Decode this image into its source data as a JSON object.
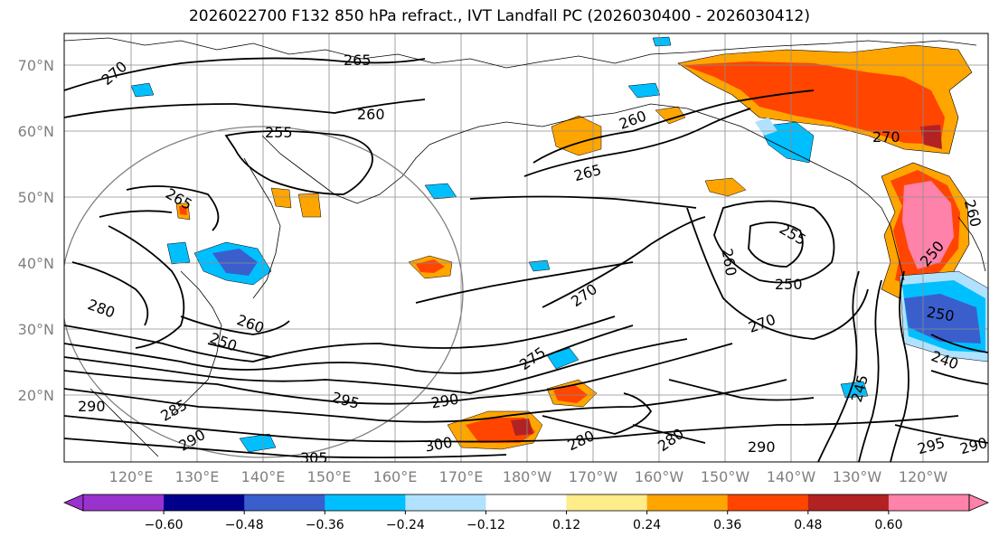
{
  "title": "2026022700 F132 850 hPa refract., IVT Landfall PC (2026030400 - 2026030412)",
  "lat_labels": [
    "70°N",
    "60°N",
    "50°N",
    "40°N",
    "30°N",
    "20°N"
  ],
  "lon_labels": [
    "120°E",
    "130°E",
    "140°E",
    "150°E",
    "160°E",
    "170°E",
    "180°W",
    "170°W",
    "160°W",
    "150°W",
    "140°W",
    "130°W",
    "120°W"
  ],
  "contour_labels": [
    "270",
    "265",
    "260",
    "255",
    "265",
    "260",
    "270",
    "265",
    "255",
    "260",
    "250",
    "270",
    "270",
    "275",
    "280",
    "245",
    "240",
    "250",
    "250",
    "260",
    "285",
    "290",
    "290",
    "295",
    "300",
    "305",
    "280",
    "290",
    "280",
    "290",
    "295",
    "290",
    "260",
    "250"
  ],
  "colorbar": {
    "colors": [
      "#9a32cd",
      "#00008b",
      "#3a5fcd",
      "#00bfff",
      "#b0e2ff",
      "#ffffff",
      "#ffec8b",
      "#ffa500",
      "#ff4500",
      "#b22222",
      "#ff82ab"
    ],
    "ticks": [
      "−0.60",
      "−0.48",
      "−0.36",
      "−0.24",
      "−0.12",
      "0.12",
      "0.24",
      "0.36",
      "0.48",
      "0.60"
    ]
  }
}
